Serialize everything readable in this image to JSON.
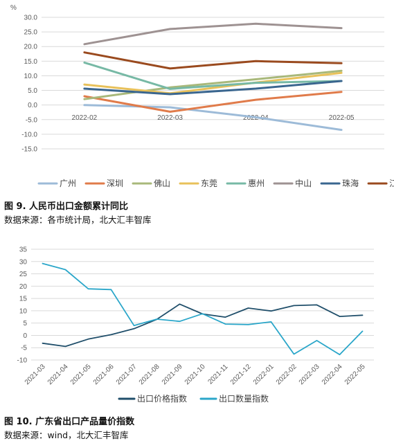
{
  "figure1": {
    "caption": "图 9.  人民币出口金额累计同比",
    "source": "数据来源：各市统计局，北大汇丰智库",
    "unit_label": "%"
  },
  "figure2": {
    "caption": "图 10.  广东省出口产品量价指数",
    "source": "数据来源：wind，北大汇丰智库"
  },
  "chart_data": [
    {
      "type": "line",
      "ylabel": "%",
      "ylim": [
        -15,
        30
      ],
      "yticks": [
        "30.0",
        "25.0",
        "20.0",
        "15.0",
        "10.0",
        "5.0",
        "0.0",
        "-5.0",
        "-10.0",
        "-15.0"
      ],
      "categories": [
        "2022-02",
        "2022-03",
        "2022-04",
        "2022-05"
      ],
      "grid": true,
      "legend": "bottom",
      "series": [
        {
          "name": "广州",
          "color": "#9dbbd8",
          "values": [
            0.0,
            -0.8,
            -4.2,
            -8.5
          ]
        },
        {
          "name": "深圳",
          "color": "#e07b4a",
          "values": [
            3.0,
            -2.3,
            1.8,
            4.5
          ]
        },
        {
          "name": "佛山",
          "color": "#a8b87a",
          "values": [
            2.0,
            6.0,
            8.8,
            11.7
          ]
        },
        {
          "name": "东莞",
          "color": "#e8c15a",
          "values": [
            7.0,
            4.0,
            7.7,
            11.0
          ]
        },
        {
          "name": "惠州",
          "color": "#77b9a5",
          "values": [
            14.5,
            5.5,
            7.6,
            8.2
          ]
        },
        {
          "name": "中山",
          "color": "#9e9292",
          "values": [
            20.8,
            26.0,
            27.8,
            26.3
          ]
        },
        {
          "name": "珠海",
          "color": "#3a668f",
          "values": [
            5.6,
            3.7,
            5.6,
            8.2
          ]
        },
        {
          "name": "江门",
          "color": "#9a4a1e",
          "values": [
            18.0,
            12.5,
            15.0,
            14.3
          ]
        }
      ]
    },
    {
      "type": "line",
      "ylim": [
        -10,
        35
      ],
      "yticks": [
        "35",
        "30",
        "25",
        "20",
        "15",
        "10",
        "5",
        "0",
        "-5",
        "-10"
      ],
      "categories": [
        "2021-03",
        "2021-04",
        "2021-05",
        "2021-06",
        "2021-07",
        "2021-08",
        "2021-09",
        "2021-10",
        "2021-11",
        "2021-12",
        "2022-01",
        "2022-02",
        "2022-03",
        "2022-04",
        "2022-05"
      ],
      "grid": true,
      "legend": "bottom",
      "series": [
        {
          "name": "出口价格指数",
          "color": "#1f4e6a",
          "values": [
            -3.2,
            -4.5,
            -1.5,
            0.3,
            2.7,
            6.5,
            12.7,
            8.7,
            7.4,
            11.1,
            9.9,
            12.1,
            12.4,
            7.7,
            8.2
          ]
        },
        {
          "name": "出口数量指数",
          "color": "#2aa6c9",
          "values": [
            29.2,
            26.7,
            18.9,
            18.6,
            4.0,
            6.6,
            5.7,
            8.8,
            4.6,
            4.4,
            5.5,
            -7.6,
            -2.1,
            -7.8,
            1.7
          ]
        }
      ]
    }
  ]
}
